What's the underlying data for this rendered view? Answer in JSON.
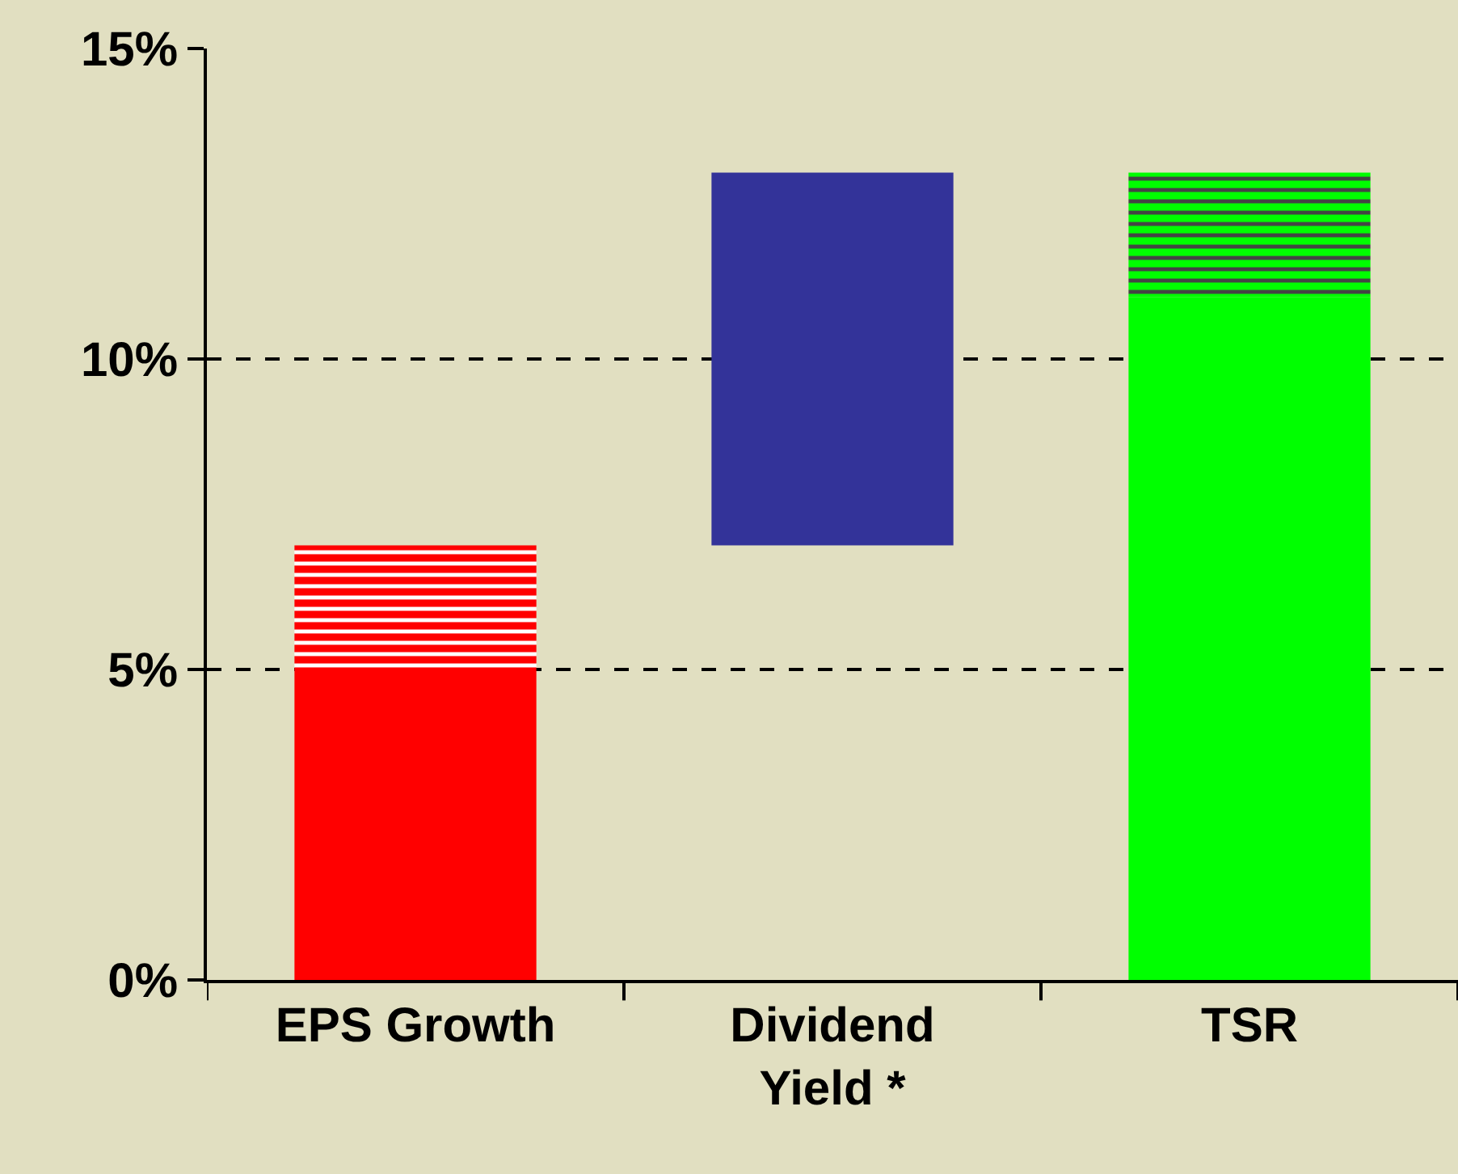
{
  "chart_data": {
    "type": "bar",
    "stacked": true,
    "categories": [
      "EPS Growth",
      "Dividend Yield *",
      "TSR"
    ],
    "series": [
      {
        "colors": [
          "#ff0000",
          "#333399",
          "#00ff00"
        ],
        "base": [
          0,
          7,
          0
        ],
        "values": [
          5,
          6,
          11
        ]
      },
      {
        "colors": [
          "#ff0000",
          "#333399",
          "#00ff00"
        ],
        "values": [
          2,
          null,
          2
        ]
      }
    ],
    "ylim": [
      0,
      15
    ],
    "yticks": [
      {
        "value": 0,
        "label": "0%"
      },
      {
        "value": 5,
        "label": "5%"
      },
      {
        "value": 10,
        "label": "10%"
      },
      {
        "value": 15,
        "label": "15%"
      }
    ],
    "grid": "y"
  }
}
